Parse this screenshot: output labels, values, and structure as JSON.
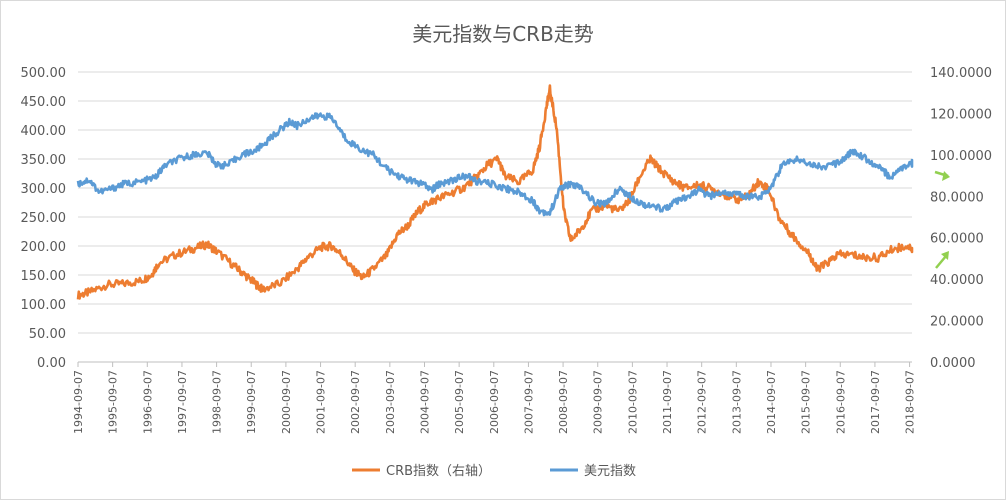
{
  "chart_data": {
    "type": "line",
    "title": "美元指数与CRB走势",
    "left_axis": {
      "range": [
        0,
        500
      ],
      "ticks": [
        "0.00",
        "50.00",
        "100.00",
        "150.00",
        "200.00",
        "250.00",
        "300.00",
        "350.00",
        "400.00",
        "450.00",
        "500.00"
      ]
    },
    "right_axis": {
      "range": [
        0,
        140
      ],
      "ticks": [
        "0.0000",
        "20.0000",
        "40.0000",
        "60.0000",
        "80.0000",
        "100.0000",
        "120.0000",
        "140.0000"
      ]
    },
    "x": [
      "1994-09-07",
      "1995-09-07",
      "1996-09-07",
      "1997-09-07",
      "1998-09-07",
      "1999-09-07",
      "2000-09-07",
      "2001-09-07",
      "2002-09-07",
      "2003-09-07",
      "2004-09-07",
      "2005-09-07",
      "2006-09-07",
      "2007-09-07",
      "2008-09-07",
      "2009-09-07",
      "2010-09-07",
      "2011-09-07",
      "2012-09-07",
      "2013-09-07",
      "2014-09-07",
      "2015-09-07",
      "2016-09-07",
      "2017-09-07",
      "2018-09-07"
    ],
    "grid": true,
    "legend_position": "bottom",
    "series": [
      {
        "name": "CRB指数（右轴）",
        "color": "#ED7D31",
        "points": [
          [
            1994.68,
            115
          ],
          [
            1995.0,
            120
          ],
          [
            1995.5,
            133
          ],
          [
            1996.0,
            135
          ],
          [
            1996.5,
            140
          ],
          [
            1996.8,
            150
          ],
          [
            1997.0,
            170
          ],
          [
            1997.5,
            185
          ],
          [
            1998.0,
            195
          ],
          [
            1998.4,
            203
          ],
          [
            1998.7,
            190
          ],
          [
            1999.2,
            165
          ],
          [
            1999.5,
            150
          ],
          [
            1999.8,
            135
          ],
          [
            2000.0,
            125
          ],
          [
            2000.5,
            135
          ],
          [
            2001.0,
            160
          ],
          [
            2001.3,
            180
          ],
          [
            2001.7,
            198
          ],
          [
            2002.0,
            200
          ],
          [
            2002.3,
            185
          ],
          [
            2002.6,
            160
          ],
          [
            2002.9,
            145
          ],
          [
            2003.2,
            160
          ],
          [
            2003.6,
            185
          ],
          [
            2003.9,
            220
          ],
          [
            2004.2,
            235
          ],
          [
            2004.5,
            260
          ],
          [
            2004.8,
            275
          ],
          [
            2005.0,
            280
          ],
          [
            2005.4,
            290
          ],
          [
            2005.8,
            300
          ],
          [
            2006.2,
            320
          ],
          [
            2006.5,
            340
          ],
          [
            2006.8,
            350
          ],
          [
            2007.0,
            320
          ],
          [
            2007.4,
            310
          ],
          [
            2007.8,
            330
          ],
          [
            2008.0,
            370
          ],
          [
            2008.2,
            440
          ],
          [
            2008.3,
            470
          ],
          [
            2008.5,
            400
          ],
          [
            2008.7,
            260
          ],
          [
            2008.9,
            210
          ],
          [
            2009.2,
            230
          ],
          [
            2009.5,
            260
          ],
          [
            2009.9,
            270
          ],
          [
            2010.3,
            260
          ],
          [
            2010.6,
            280
          ],
          [
            2010.9,
            320
          ],
          [
            2011.2,
            350
          ],
          [
            2011.5,
            330
          ],
          [
            2011.9,
            310
          ],
          [
            2012.2,
            300
          ],
          [
            2012.6,
            305
          ],
          [
            2012.9,
            300
          ],
          [
            2013.3,
            290
          ],
          [
            2013.7,
            280
          ],
          [
            2014.0,
            285
          ],
          [
            2014.3,
            310
          ],
          [
            2014.6,
            300
          ],
          [
            2014.9,
            250
          ],
          [
            2015.2,
            225
          ],
          [
            2015.5,
            205
          ],
          [
            2015.8,
            185
          ],
          [
            2016.0,
            160
          ],
          [
            2016.3,
            170
          ],
          [
            2016.6,
            185
          ],
          [
            2017.0,
            185
          ],
          [
            2017.4,
            180
          ],
          [
            2017.8,
            180
          ],
          [
            2018.2,
            195
          ],
          [
            2018.6,
            200
          ],
          [
            2019.0,
            190
          ]
        ]
      },
      {
        "name": "美元指数",
        "color": "#5B9BD5",
        "points": [
          [
            1994.68,
            86
          ],
          [
            1995.0,
            88
          ],
          [
            1995.3,
            82
          ],
          [
            1995.7,
            84
          ],
          [
            1996.0,
            86
          ],
          [
            1996.5,
            87
          ],
          [
            1996.9,
            89
          ],
          [
            1997.2,
            95
          ],
          [
            1997.6,
            98
          ],
          [
            1998.0,
            100
          ],
          [
            1998.4,
            101
          ],
          [
            1998.7,
            95
          ],
          [
            1999.0,
            95
          ],
          [
            1999.4,
            100
          ],
          [
            1999.8,
            102
          ],
          [
            2000.1,
            106
          ],
          [
            2000.5,
            112
          ],
          [
            2000.8,
            116
          ],
          [
            2001.0,
            114
          ],
          [
            2001.4,
            118
          ],
          [
            2001.7,
            119
          ],
          [
            2002.0,
            118
          ],
          [
            2002.4,
            108
          ],
          [
            2002.8,
            103
          ],
          [
            2003.2,
            100
          ],
          [
            2003.6,
            93
          ],
          [
            2003.9,
            90
          ],
          [
            2004.2,
            88
          ],
          [
            2004.6,
            86
          ],
          [
            2004.9,
            83
          ],
          [
            2005.1,
            86
          ],
          [
            2005.5,
            88
          ],
          [
            2005.9,
            90
          ],
          [
            2006.2,
            87
          ],
          [
            2006.6,
            86
          ],
          [
            2007.0,
            84
          ],
          [
            2007.4,
            82
          ],
          [
            2007.8,
            78
          ],
          [
            2008.0,
            73
          ],
          [
            2008.3,
            72
          ],
          [
            2008.6,
            84
          ],
          [
            2008.9,
            86
          ],
          [
            2009.2,
            84
          ],
          [
            2009.6,
            77
          ],
          [
            2009.9,
            76
          ],
          [
            2010.3,
            84
          ],
          [
            2010.6,
            80
          ],
          [
            2010.9,
            77
          ],
          [
            2011.2,
            75
          ],
          [
            2011.6,
            74
          ],
          [
            2011.9,
            77
          ],
          [
            2012.2,
            79
          ],
          [
            2012.6,
            83
          ],
          [
            2012.9,
            80
          ],
          [
            2013.3,
            82
          ],
          [
            2013.7,
            81
          ],
          [
            2014.0,
            80
          ],
          [
            2014.4,
            80
          ],
          [
            2014.7,
            85
          ],
          [
            2015.0,
            95
          ],
          [
            2015.4,
            98
          ],
          [
            2015.8,
            96
          ],
          [
            2016.2,
            94
          ],
          [
            2016.6,
            96
          ],
          [
            2016.9,
            100
          ],
          [
            2017.1,
            102
          ],
          [
            2017.5,
            97
          ],
          [
            2017.9,
            93
          ],
          [
            2018.1,
            89
          ],
          [
            2018.5,
            94
          ],
          [
            2019.0,
            97
          ]
        ]
      }
    ]
  }
}
